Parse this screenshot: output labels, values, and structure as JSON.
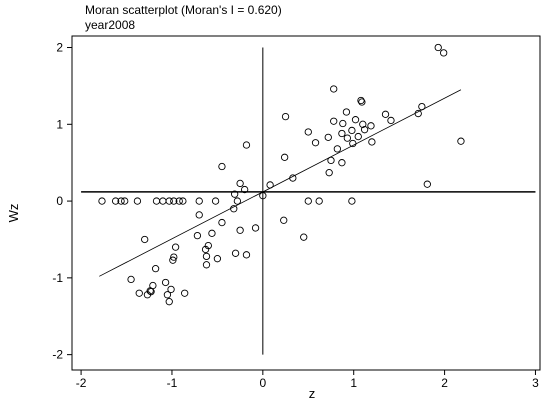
{
  "chart_data": {
    "type": "scatter",
    "title": "Moran scatterplot (Moran's I = 0.620)",
    "subtitle": "year2008",
    "xlabel": "z",
    "ylabel": "Wz",
    "xlim": [
      -2.1,
      3.05
    ],
    "ylim": [
      -2.2,
      2.15
    ],
    "xticks": [
      "-2",
      "-1",
      "0",
      "1",
      "2",
      "3"
    ],
    "xtick_values": [
      -2,
      -1,
      0,
      1,
      2,
      3
    ],
    "yticks": [
      "-2",
      "-1",
      "0",
      "1",
      "2"
    ],
    "ytick_values": [
      -2,
      -1,
      0,
      1,
      2
    ],
    "reference_lines": {
      "x": 0,
      "y": 0.12
    },
    "fit_line": {
      "x": [
        -1.8,
        2.18
      ],
      "y": [
        -0.98,
        1.45
      ]
    },
    "grid": false,
    "colors": {
      "points": "#000000",
      "axes": "#000000",
      "fit_line": "#000000"
    },
    "points": [
      {
        "x": 1.93,
        "y": 2.0
      },
      {
        "x": 1.99,
        "y": 1.93
      },
      {
        "x": 0.78,
        "y": 1.46
      },
      {
        "x": 1.08,
        "y": 1.31
      },
      {
        "x": 1.09,
        "y": 1.29
      },
      {
        "x": 1.75,
        "y": 1.23
      },
      {
        "x": 1.71,
        "y": 1.14
      },
      {
        "x": 0.25,
        "y": 1.1
      },
      {
        "x": 0.92,
        "y": 1.16
      },
      {
        "x": 1.35,
        "y": 1.13
      },
      {
        "x": 1.02,
        "y": 1.06
      },
      {
        "x": 0.78,
        "y": 1.04
      },
      {
        "x": 1.1,
        "y": 1.0
      },
      {
        "x": 0.88,
        "y": 1.01
      },
      {
        "x": 1.41,
        "y": 1.05
      },
      {
        "x": 1.19,
        "y": 0.98
      },
      {
        "x": 1.12,
        "y": 0.93
      },
      {
        "x": 0.5,
        "y": 0.9
      },
      {
        "x": 0.98,
        "y": 0.92
      },
      {
        "x": 0.87,
        "y": 0.88
      },
      {
        "x": 0.72,
        "y": 0.83
      },
      {
        "x": 0.93,
        "y": 0.82
      },
      {
        "x": 1.05,
        "y": 0.84
      },
      {
        "x": 2.18,
        "y": 0.78
      },
      {
        "x": 0.99,
        "y": 0.75
      },
      {
        "x": 1.2,
        "y": 0.77
      },
      {
        "x": -0.18,
        "y": 0.73
      },
      {
        "x": 0.82,
        "y": 0.68
      },
      {
        "x": 0.58,
        "y": 0.76
      },
      {
        "x": 0.24,
        "y": 0.57
      },
      {
        "x": 0.75,
        "y": 0.53
      },
      {
        "x": 0.87,
        "y": 0.5
      },
      {
        "x": -0.45,
        "y": 0.45
      },
      {
        "x": 0.73,
        "y": 0.37
      },
      {
        "x": 0.33,
        "y": 0.3
      },
      {
        "x": 1.81,
        "y": 0.22
      },
      {
        "x": -0.25,
        "y": 0.23
      },
      {
        "x": 0.08,
        "y": 0.21
      },
      {
        "x": -0.2,
        "y": 0.15
      },
      {
        "x": -0.31,
        "y": 0.09
      },
      {
        "x": 0.0,
        "y": 0.07
      },
      {
        "x": -1.77,
        "y": 0.0
      },
      {
        "x": -1.62,
        "y": 0.0
      },
      {
        "x": -1.56,
        "y": 0.0
      },
      {
        "x": -1.52,
        "y": 0.0
      },
      {
        "x": -1.38,
        "y": 0.0
      },
      {
        "x": -1.17,
        "y": 0.0
      },
      {
        "x": -1.1,
        "y": 0.0
      },
      {
        "x": -1.03,
        "y": 0.0
      },
      {
        "x": -0.98,
        "y": 0.0
      },
      {
        "x": -0.92,
        "y": 0.0
      },
      {
        "x": -0.88,
        "y": 0.0
      },
      {
        "x": -0.7,
        "y": 0.0
      },
      {
        "x": -0.52,
        "y": 0.0
      },
      {
        "x": -0.28,
        "y": 0.0
      },
      {
        "x": 0.5,
        "y": 0.0
      },
      {
        "x": 0.62,
        "y": 0.0
      },
      {
        "x": 0.98,
        "y": 0.0
      },
      {
        "x": -0.32,
        "y": -0.1
      },
      {
        "x": -0.7,
        "y": -0.18
      },
      {
        "x": 0.23,
        "y": -0.25
      },
      {
        "x": -0.45,
        "y": -0.28
      },
      {
        "x": -0.08,
        "y": -0.35
      },
      {
        "x": -0.25,
        "y": -0.38
      },
      {
        "x": -0.56,
        "y": -0.42
      },
      {
        "x": -0.72,
        "y": -0.45
      },
      {
        "x": 0.45,
        "y": -0.47
      },
      {
        "x": -1.3,
        "y": -0.5
      },
      {
        "x": -0.6,
        "y": -0.58
      },
      {
        "x": -0.96,
        "y": -0.6
      },
      {
        "x": -0.63,
        "y": -0.63
      },
      {
        "x": -0.3,
        "y": -0.68
      },
      {
        "x": -0.18,
        "y": -0.7
      },
      {
        "x": -0.62,
        "y": -0.72
      },
      {
        "x": -0.98,
        "y": -0.73
      },
      {
        "x": -0.5,
        "y": -0.75
      },
      {
        "x": -0.99,
        "y": -0.77
      },
      {
        "x": -0.62,
        "y": -0.83
      },
      {
        "x": -1.18,
        "y": -0.88
      },
      {
        "x": -1.45,
        "y": -1.02
      },
      {
        "x": -1.21,
        "y": -1.1
      },
      {
        "x": -1.07,
        "y": -1.06
      },
      {
        "x": -1.01,
        "y": -1.15
      },
      {
        "x": -1.24,
        "y": -1.17
      },
      {
        "x": -1.36,
        "y": -1.2
      },
      {
        "x": -1.27,
        "y": -1.22
      },
      {
        "x": -1.23,
        "y": -1.18
      },
      {
        "x": -1.05,
        "y": -1.22
      },
      {
        "x": -0.86,
        "y": -1.2
      },
      {
        "x": -1.03,
        "y": -1.31
      }
    ]
  }
}
